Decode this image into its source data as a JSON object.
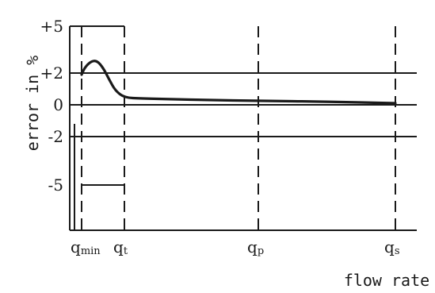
{
  "chart_data": {
    "type": "line",
    "xlabel": "flow rate",
    "ylabel": "error in %",
    "x_ticks": [
      {
        "label": "q",
        "sub": "min",
        "x": 0.3
      },
      {
        "label": "q",
        "sub": "t",
        "x": 1
      },
      {
        "label": "q",
        "sub": "p",
        "x": 5
      },
      {
        "label": "q",
        "sub": "s",
        "x": 8
      }
    ],
    "y_ticks": [
      {
        "label": "+5",
        "y": 5
      },
      {
        "label": "+2",
        "y": 2
      },
      {
        "label": "0",
        "y": 0
      },
      {
        "label": "-2",
        "y": -2
      },
      {
        "label": "-5",
        "y": -5
      }
    ],
    "ylim": [
      -8,
      5
    ],
    "xlim": [
      0,
      8.6
    ],
    "limits": [
      {
        "name": "upper-limit-low-flow",
        "x_range": [
          0.3,
          1
        ],
        "y": 5
      },
      {
        "name": "lower-limit-low-flow",
        "x_range": [
          0.3,
          1
        ],
        "y": -5
      },
      {
        "name": "upper-limit-high-flow",
        "x_range": [
          0,
          8.6
        ],
        "y": 2
      },
      {
        "name": "lower-limit-high-flow",
        "x_range": [
          0,
          8.6
        ],
        "y": -2
      },
      {
        "name": "zero-line",
        "x_range": [
          0,
          8.6
        ],
        "y": 0
      }
    ],
    "series": [
      {
        "x": [
          0.3,
          0.35,
          0.45,
          0.55,
          0.65,
          0.75,
          0.85,
          1.0,
          1.5,
          2.5,
          3.5,
          5.0,
          6.5,
          8.0
        ],
        "values": [
          1.9,
          2.35,
          2.75,
          2.8,
          2.35,
          1.6,
          0.9,
          0.45,
          0.4,
          0.35,
          0.3,
          0.25,
          0.2,
          0.1
        ]
      }
    ]
  }
}
